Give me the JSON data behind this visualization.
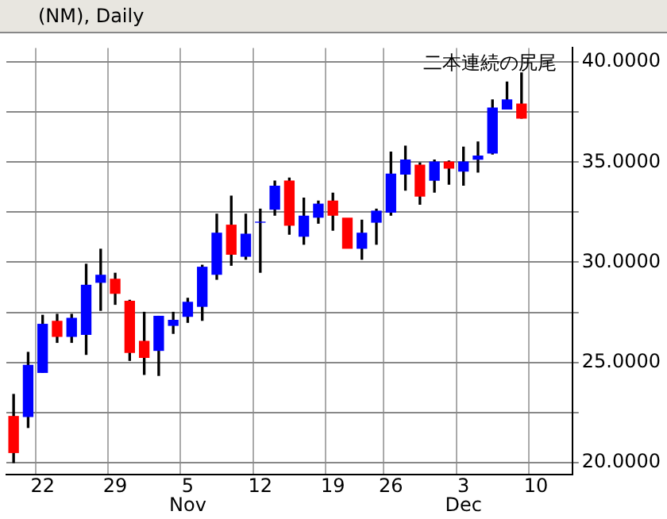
{
  "chart_data": {
    "type": "candlestick",
    "title": "(NM), Daily",
    "categories": [
      null,
      null,
      "22",
      null,
      null,
      null,
      null,
      "29",
      null,
      null,
      null,
      null,
      "5\nNov",
      null,
      null,
      null,
      null,
      "12",
      null,
      null,
      null,
      null,
      "19",
      null,
      null,
      null,
      "26",
      null,
      null,
      null,
      null,
      "3\nDec",
      null,
      null,
      null,
      null,
      "10",
      null,
      null
    ],
    "ohlc": [
      [
        22.3,
        23.4,
        20.0,
        20.5
      ],
      [
        22.3,
        25.5,
        21.75,
        24.85
      ],
      [
        24.5,
        27.35,
        24.5,
        26.9
      ],
      [
        27.05,
        27.4,
        26.0,
        26.3
      ],
      [
        26.3,
        27.4,
        26.0,
        27.2
      ],
      [
        26.4,
        29.9,
        25.4,
        28.85
      ],
      [
        29.0,
        30.65,
        27.6,
        29.35
      ],
      [
        29.15,
        29.45,
        27.9,
        28.45
      ],
      [
        28.05,
        28.1,
        25.1,
        25.5
      ],
      [
        26.05,
        27.5,
        24.4,
        25.25
      ],
      [
        25.6,
        27.3,
        24.35,
        27.3
      ],
      [
        26.85,
        27.5,
        26.45,
        27.1
      ],
      [
        27.3,
        28.2,
        27.0,
        28.0
      ],
      [
        27.8,
        29.85,
        27.1,
        29.75
      ],
      [
        29.4,
        32.4,
        29.15,
        31.45
      ],
      [
        31.85,
        33.3,
        29.85,
        30.4
      ],
      [
        30.3,
        32.4,
        30.15,
        31.4
      ],
      [
        32.0,
        32.65,
        29.5,
        32.0
      ],
      [
        32.65,
        34.05,
        32.35,
        33.8
      ],
      [
        34.05,
        34.2,
        31.4,
        31.85
      ],
      [
        31.3,
        33.2,
        30.9,
        32.3
      ],
      [
        32.25,
        33.05,
        31.95,
        32.9
      ],
      [
        33.05,
        33.45,
        31.6,
        32.35
      ],
      [
        32.2,
        32.2,
        30.7,
        30.7
      ],
      [
        30.7,
        32.1,
        30.15,
        31.45
      ],
      [
        32.0,
        32.65,
        30.9,
        32.55
      ],
      [
        32.5,
        35.5,
        32.35,
        34.4
      ],
      [
        34.4,
        35.8,
        33.6,
        35.1
      ],
      [
        34.85,
        34.95,
        32.9,
        33.3
      ],
      [
        34.1,
        35.1,
        33.5,
        35.0
      ],
      [
        35.0,
        35.05,
        33.9,
        34.7
      ],
      [
        34.55,
        35.75,
        33.85,
        35.0
      ],
      [
        35.15,
        36.0,
        34.5,
        35.3
      ],
      [
        35.45,
        38.1,
        35.4,
        37.7
      ],
      [
        37.65,
        39.0,
        37.65,
        38.1
      ],
      [
        37.9,
        39.45,
        37.2,
        37.2
      ],
      null,
      null,
      null
    ],
    "colors": [
      "#ff0000",
      "#0000ff",
      "#0000ff",
      "#ff0000",
      "#0000ff",
      "#0000ff",
      "#0000ff",
      "#ff0000",
      "#ff0000",
      "#ff0000",
      "#0000ff",
      "#0000ff",
      "#0000ff",
      "#0000ff",
      "#0000ff",
      "#ff0000",
      "#0000ff",
      "#0000ff",
      "#0000ff",
      "#ff0000",
      "#0000ff",
      "#0000ff",
      "#ff0000",
      "#ff0000",
      "#0000ff",
      "#0000ff",
      "#0000ff",
      "#0000ff",
      "#ff0000",
      "#0000ff",
      "#ff0000",
      "#0000ff",
      "#0000ff",
      "#0000ff",
      "#0000ff",
      "#ff0000",
      null,
      null,
      null
    ],
    "ylim": [
      19.4,
      40.7
    ],
    "yticks": [
      {
        "value": 20,
        "label": "20.0000"
      },
      {
        "value": 22.5,
        "label": null
      },
      {
        "value": 25,
        "label": "25.0000"
      },
      {
        "value": 27.5,
        "label": null
      },
      {
        "value": 30,
        "label": "30.0000"
      },
      {
        "value": 32.5,
        "label": null
      },
      {
        "value": 35,
        "label": "35.0000"
      },
      {
        "value": 37.5,
        "label": null
      },
      {
        "value": 40,
        "label": "40.0000"
      }
    ],
    "grid": true,
    "legend": false,
    "annotations": [
      "二本連続の尻尾"
    ]
  }
}
